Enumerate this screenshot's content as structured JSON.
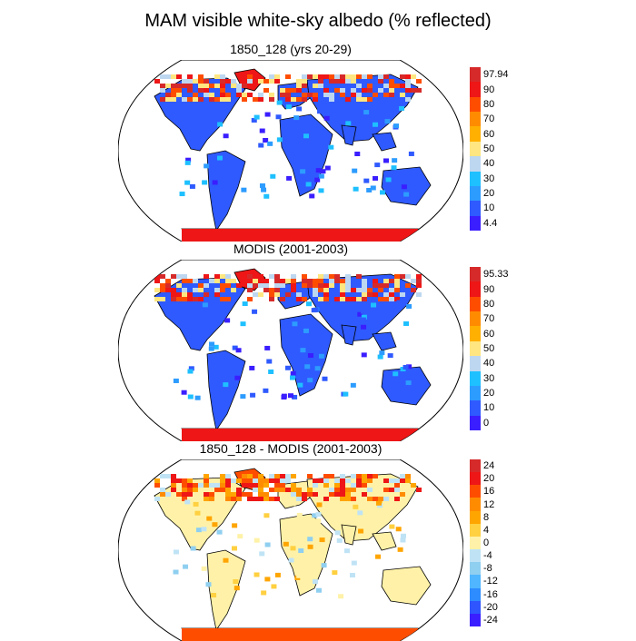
{
  "title": "MAM visible white-sky albedo (% reflected)",
  "panels": [
    {
      "title": "1850_128 (yrs 20-29)",
      "legend": {
        "labels": [
          "97.94",
          "90",
          "80",
          "70",
          "60",
          "50",
          "40",
          "30",
          "20",
          "10",
          "4.4"
        ],
        "colors": [
          "#d62a2a",
          "#ee1616",
          "#ff4d00",
          "#ff8c00",
          "#ffb000",
          "#ffe680",
          "#bdd7f0",
          "#1ec0ff",
          "#2d9cff",
          "#2f5aff",
          "#3a1eff"
        ]
      }
    },
    {
      "title": "MODIS (2001-2003)",
      "legend": {
        "labels": [
          "95.33",
          "90",
          "80",
          "70",
          "60",
          "50",
          "40",
          "30",
          "20",
          "10",
          "0"
        ],
        "colors": [
          "#d62a2a",
          "#ee1616",
          "#ff4d00",
          "#ff8c00",
          "#ffb000",
          "#ffe680",
          "#bdd7f0",
          "#1ec0ff",
          "#2d9cff",
          "#2f5aff",
          "#3a1eff"
        ]
      }
    },
    {
      "title": "1850_128 - MODIS (2001-2003)",
      "legend": {
        "labels": [
          "24",
          "20",
          "16",
          "12",
          "8",
          "4",
          "0",
          "-4",
          "-8",
          "-12",
          "-16",
          "-20",
          "-24"
        ],
        "colors": [
          "#d62a2a",
          "#ee1616",
          "#ff4d00",
          "#ff8c00",
          "#ffa500",
          "#ffd040",
          "#fff2a8",
          "#bfe3f5",
          "#8fcff0",
          "#4fb6ff",
          "#2d8cff",
          "#2f55ff",
          "#3a1eff"
        ]
      }
    }
  ],
  "palette": {
    "ocean": "#ffffff",
    "outline": "#000000"
  }
}
